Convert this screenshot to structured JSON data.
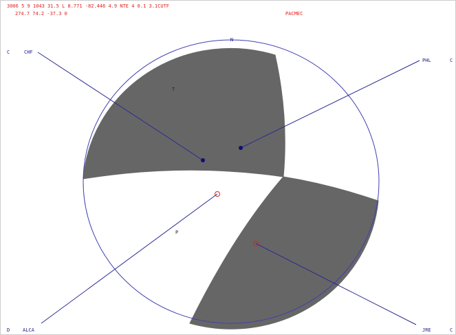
{
  "header": {
    "line1": "3006  5 9 1043 31.5 L  8.771 -82.446  4.9  NTE  4 0.1 3.1CUTF",
    "line2": "274.7      74.2     -37.3     0",
    "tag": "PACMEC"
  },
  "north": "N",
  "axes": {
    "t": "T",
    "p": "P"
  },
  "stations": [
    {
      "polarity": "C",
      "name": "CHF"
    },
    {
      "polarity": "C",
      "name": "PHL"
    },
    {
      "polarity": "D",
      "name": "ALCA"
    },
    {
      "polarity": "C",
      "name": "JRE"
    }
  ]
}
